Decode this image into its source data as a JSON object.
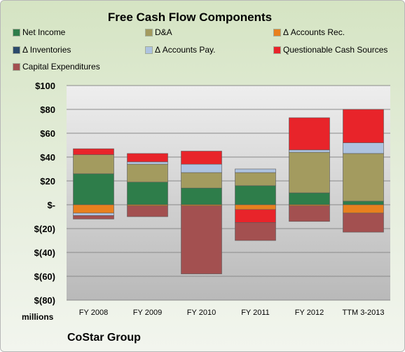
{
  "chart_data": {
    "type": "bar",
    "stacked": true,
    "title": "Free Cash Flow Components",
    "categories": [
      "FY 2008",
      "FY 2009",
      "FY 2010",
      "FY 2011",
      "FY 2012",
      "TTM 3-2013"
    ],
    "ylim": [
      -80,
      100
    ],
    "yticks": [
      100,
      80,
      60,
      40,
      20,
      0,
      -20,
      -40,
      -60,
      -80
    ],
    "ytick_labels": [
      "$100",
      "$80",
      "$60",
      "$40",
      "$20",
      "$-",
      "$(20)",
      "$(40)",
      "$(60)",
      "$(80)"
    ],
    "units_label": "millions",
    "grid": true,
    "legend_position": "top",
    "series": [
      {
        "name": "Net Income",
        "color": "#2e7d4a",
        "values": [
          26,
          19,
          14,
          16,
          10,
          3
        ]
      },
      {
        "name": "D&A",
        "color": "#a39b5f",
        "values": [
          16,
          15,
          13,
          11,
          34,
          40
        ]
      },
      {
        "name": "Δ Accounts Rec.",
        "color": "#e8801e",
        "values": [
          -7,
          -1,
          -1,
          -4,
          -1,
          -7
        ]
      },
      {
        "name": "Δ Inventories",
        "color": "#2c4a6b",
        "values": [
          0,
          0,
          0,
          0,
          0,
          0
        ]
      },
      {
        "name": "Δ Accounts Pay.",
        "color": "#aec3e0",
        "values": [
          -2,
          2,
          7,
          3,
          2,
          9
        ]
      },
      {
        "name": "Questionable Cash Sources",
        "color": "#e8242a",
        "values": [
          5,
          7,
          11,
          -11,
          27,
          28
        ]
      },
      {
        "name": "Capital Expenditures",
        "color": "#a35050",
        "values": [
          -3,
          -9,
          -57,
          -15,
          -13,
          -16
        ]
      }
    ]
  },
  "company": "CoStar Group"
}
